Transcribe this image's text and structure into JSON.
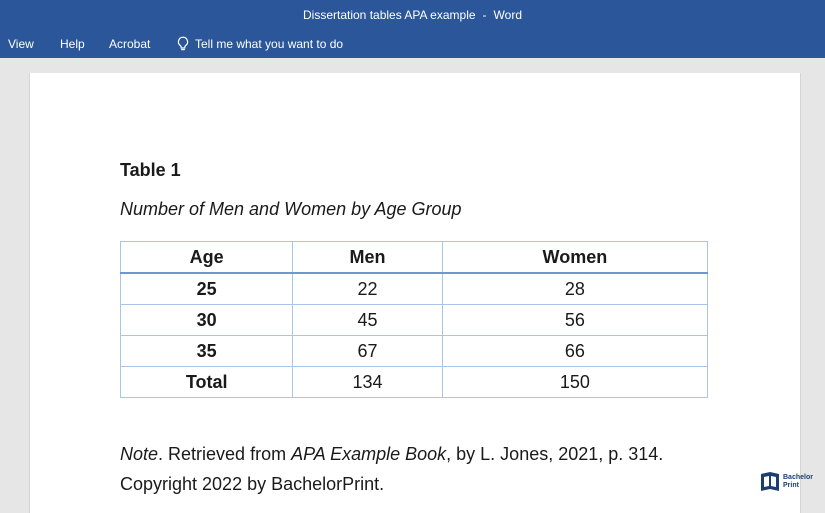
{
  "window": {
    "document_name": "Dissertation tables APA example",
    "separator": "-",
    "app_name": "Word"
  },
  "menu": {
    "items": [
      {
        "label": "View"
      },
      {
        "label": "Help"
      },
      {
        "label": "Acrobat"
      }
    ],
    "tell_me": "Tell me what you want to do"
  },
  "document": {
    "table_number": "Table 1",
    "table_title": "Number of Men and Women by Age Group",
    "table": {
      "headers": [
        "Age",
        "Men",
        "Women"
      ],
      "rows": [
        [
          "25",
          "22",
          "28"
        ],
        [
          "30",
          "45",
          "56"
        ],
        [
          "35",
          "67",
          "66"
        ],
        [
          "Total",
          "134",
          "150"
        ]
      ]
    },
    "note": {
      "label": "Note",
      "text_1": ". Retrieved from ",
      "book": "APA Example Book",
      "text_2": ", by L. Jones, 2021, p. 314.",
      "copyright": "Copyright 2022 by BachelorPrint."
    }
  },
  "logo": {
    "line1": "Bachelor",
    "line2": "Print"
  }
}
